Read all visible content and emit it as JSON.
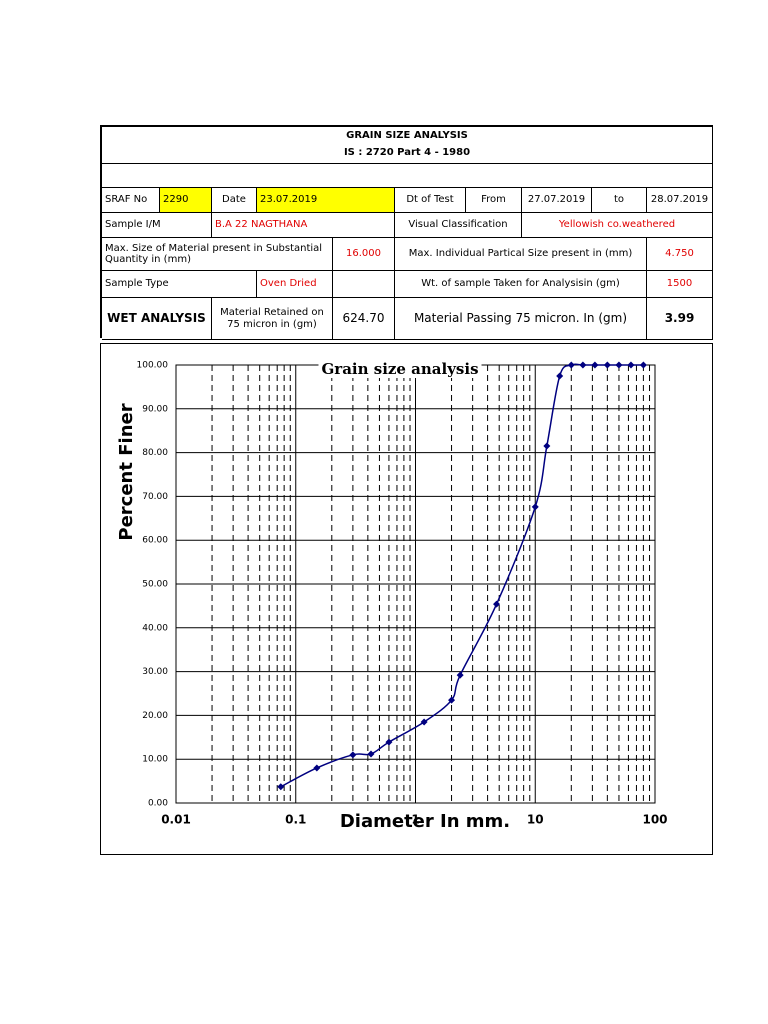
{
  "header": {
    "title": "GRAIN SIZE ANALYSIS",
    "standard": "IS : 2720 Part 4 - 1980"
  },
  "table": {
    "rows": [
      [
        "SRAF No",
        "2290",
        "Date",
        "23.07.2019",
        "Dt of Test",
        "From",
        "27.07.2019",
        "to",
        "28.07.2019"
      ],
      [
        "Sample I/M",
        "B.A 22 NAGTHANA",
        "Visual Classification",
        "Yellowish co.weathered"
      ],
      [
        "Max. Size of Material present in Substantial Quantity in (mm)",
        "16.000",
        "Max. Individual Partical Size present in (mm)",
        "4.750"
      ],
      [
        "Sample Type",
        "Oven Dried",
        "Wt. of sample Taken for Analysisin (gm)",
        "1500"
      ],
      [
        "WET ANALYSIS",
        "Material Retained on 75 micron in (gm)",
        "624.70",
        "Material Passing 75 micron. In (gm)",
        "3.99"
      ]
    ]
  },
  "chart_data": {
    "type": "line",
    "title": "Grain size analysis",
    "x_label": "Diameter In mm.",
    "y_label": "Percent Finer",
    "x": [
      0.075,
      0.15,
      0.3,
      0.425,
      0.6,
      1.18,
      2.0,
      2.36,
      4.75,
      10,
      12.5,
      16,
      20,
      25,
      31.5,
      40,
      50,
      63,
      80
    ],
    "values": [
      3.7,
      8.0,
      11.0,
      11.2,
      13.9,
      18.5,
      23.5,
      29.2,
      45.4,
      67.6,
      81.5,
      97.5,
      100,
      100,
      100,
      100,
      100,
      100,
      100
    ],
    "color": "#000080",
    "xscale": "log",
    "xlim": [
      0.01,
      100
    ],
    "xticks": [
      0.01,
      0.1,
      1,
      10,
      100
    ],
    "ylim": [
      0,
      100
    ],
    "yticks": [
      {
        "value": 0,
        "label": "0.00"
      },
      {
        "value": 10,
        "label": "10.00"
      },
      {
        "value": 20,
        "label": "20.00"
      },
      {
        "value": 30,
        "label": "30.00"
      },
      {
        "value": 40,
        "label": "40.00"
      },
      {
        "value": 50,
        "label": "50.00"
      },
      {
        "value": 60,
        "label": "60.00"
      },
      {
        "value": 70,
        "label": "70.00"
      },
      {
        "value": 80,
        "label": "80.00"
      },
      {
        "value": 90,
        "label": "90.00"
      },
      {
        "value": 100,
        "label": "100.00"
      }
    ],
    "grid": true
  }
}
